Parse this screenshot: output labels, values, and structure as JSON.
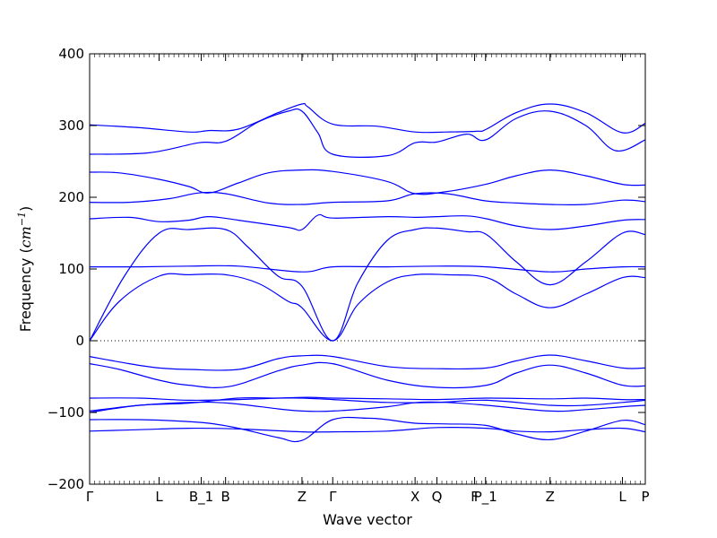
{
  "chart_data": {
    "type": "line",
    "xlabel": "Wave vector",
    "ylabel": "Frequency ($cm^{-1}$)",
    "ylabel_text": "Frequency (",
    "ylabel_unit_base": "cm",
    "ylabel_unit_sup": "−1",
    "ylabel_close": ")",
    "ylim": [
      -200,
      400
    ],
    "xlim": [
      0,
      5.6
    ],
    "y_ticks": [
      400,
      300,
      200,
      100,
      0,
      -100,
      -200
    ],
    "y_tick_labels": [
      "400",
      "300",
      "200",
      "100",
      "0",
      "−100",
      "−200"
    ],
    "high_symmetry_points": [
      {
        "x": 0.0,
        "label": "Γ"
      },
      {
        "x": 0.7,
        "label": "L"
      },
      {
        "x": 1.125,
        "label": "B_1"
      },
      {
        "x": 1.37,
        "label": "B"
      },
      {
        "x": 2.14,
        "label": "Z"
      },
      {
        "x": 2.45,
        "label": "Γ"
      },
      {
        "x": 3.28,
        "label": "X"
      },
      {
        "x": 3.5,
        "label": "Q"
      },
      {
        "x": 3.88,
        "label": "F"
      },
      {
        "x": 3.99,
        "label": "P_1"
      },
      {
        "x": 4.64,
        "label": "Z"
      },
      {
        "x": 5.37,
        "label": "L"
      },
      {
        "x": 5.6,
        "label": "P"
      }
    ],
    "zero_line": true,
    "line_color": "#0000ff",
    "series": [
      {
        "x": [
          0,
          0.5,
          1.0,
          1.2,
          1.5,
          1.9,
          2.14,
          2.2,
          2.45,
          2.9,
          3.28,
          3.6,
          3.9,
          4.0,
          4.3,
          4.64,
          5.0,
          5.37,
          5.6
        ],
        "y": [
          301,
          297,
          291,
          293,
          295,
          318,
          330,
          326,
          302,
          299,
          291,
          291,
          292,
          295,
          318,
          330,
          318,
          290,
          303
        ]
      },
      {
        "x": [
          0,
          0.6,
          1.1,
          1.37,
          1.7,
          2.0,
          2.14,
          2.3,
          2.45,
          3.0,
          3.28,
          3.5,
          3.8,
          3.99,
          4.3,
          4.64,
          5.0,
          5.3,
          5.6
        ],
        "y": [
          260,
          262,
          276,
          278,
          305,
          320,
          320,
          290,
          260,
          258,
          276,
          277,
          288,
          280,
          310,
          320,
          300,
          265,
          280
        ]
      },
      {
        "x": [
          0,
          0.3,
          0.7,
          1.0,
          1.2,
          1.5,
          1.8,
          2.14,
          2.45,
          3.0,
          3.28,
          3.6,
          3.99,
          4.3,
          4.64,
          5.0,
          5.37,
          5.6
        ],
        "y": [
          235,
          234,
          225,
          215,
          206,
          220,
          234,
          238,
          236,
          222,
          205,
          208,
          218,
          230,
          238,
          230,
          218,
          217
        ]
      },
      {
        "x": [
          0,
          0.4,
          0.8,
          1.1,
          1.37,
          1.8,
          2.14,
          2.45,
          3.0,
          3.28,
          3.6,
          3.99,
          4.3,
          4.64,
          5.0,
          5.37,
          5.6
        ],
        "y": [
          193,
          193,
          198,
          206,
          205,
          192,
          190,
          193,
          195,
          205,
          205,
          195,
          192,
          190,
          190,
          196,
          194
        ]
      },
      {
        "x": [
          0,
          0.4,
          0.7,
          1.0,
          1.2,
          1.5,
          2.0,
          2.14,
          2.3,
          2.45,
          3.0,
          3.3,
          3.5,
          3.8,
          4.0,
          4.3,
          4.64,
          5.0,
          5.37,
          5.6
        ],
        "y": [
          170,
          172,
          166,
          168,
          173,
          168,
          158,
          155,
          175,
          171,
          173,
          172,
          173,
          174,
          170,
          160,
          155,
          160,
          168,
          169
        ]
      },
      {
        "x": [
          0,
          0.35,
          0.7,
          1.0,
          1.37,
          1.6,
          1.9,
          2.14,
          2.45,
          2.7,
          3.0,
          3.28,
          3.5,
          3.8,
          4.0,
          4.3,
          4.64,
          5.0,
          5.37,
          5.6
        ],
        "y": [
          0,
          90,
          150,
          155,
          155,
          130,
          90,
          76,
          0,
          80,
          140,
          155,
          157,
          152,
          148,
          110,
          78,
          110,
          150,
          148
        ]
      },
      {
        "x": [
          0,
          0.5,
          1.0,
          1.5,
          2.14,
          2.45,
          3.0,
          3.5,
          4.0,
          4.64,
          5.0,
          5.37,
          5.6
        ],
        "y": [
          103,
          103,
          104,
          104,
          96,
          103,
          103,
          104,
          103,
          96,
          100,
          103,
          103
        ]
      },
      {
        "x": [
          0,
          0.3,
          0.7,
          1.0,
          1.37,
          1.7,
          2.0,
          2.14,
          2.45,
          2.7,
          3.0,
          3.28,
          3.6,
          4.0,
          4.3,
          4.64,
          5.0,
          5.37,
          5.6
        ],
        "y": [
          0,
          55,
          90,
          92,
          92,
          80,
          55,
          46,
          0,
          50,
          82,
          92,
          92,
          88,
          65,
          46,
          65,
          88,
          88
        ]
      },
      {
        "x": [
          0,
          0.4,
          0.7,
          1.0,
          1.5,
          1.9,
          2.14,
          2.45,
          3.0,
          3.5,
          4.0,
          4.3,
          4.64,
          5.0,
          5.37,
          5.6
        ],
        "y": [
          -22,
          -32,
          -38,
          -40,
          -40,
          -25,
          -21,
          -22,
          -36,
          -39,
          -38,
          -28,
          -20,
          -28,
          -38,
          -38
        ]
      },
      {
        "x": [
          0,
          0.3,
          0.7,
          1.0,
          1.4,
          1.9,
          2.14,
          2.45,
          3.0,
          3.5,
          4.0,
          4.3,
          4.64,
          5.0,
          5.37,
          5.6
        ],
        "y": [
          -32,
          -40,
          -55,
          -62,
          -64,
          -42,
          -34,
          -32,
          -55,
          -65,
          -62,
          -45,
          -34,
          -45,
          -62,
          -63
        ]
      },
      {
        "x": [
          0,
          0.5,
          1.0,
          1.5,
          2.14,
          2.45,
          3.0,
          3.5,
          4.0,
          4.64,
          5.0,
          5.37,
          5.6
        ],
        "y": [
          -80,
          -80,
          -83,
          -82,
          -79,
          -80,
          -81,
          -82,
          -80,
          -81,
          -80,
          -82,
          -82
        ]
      },
      {
        "x": [
          0,
          0.5,
          1.0,
          1.4,
          1.9,
          2.14,
          2.45,
          3.0,
          3.3,
          3.6,
          4.0,
          4.64,
          5.0,
          5.37,
          5.6
        ],
        "y": [
          -98,
          -90,
          -86,
          -87,
          -95,
          -98,
          -98,
          -92,
          -86,
          -86,
          -90,
          -98,
          -96,
          -92,
          -90
        ]
      },
      {
        "x": [
          0,
          0.5,
          1.0,
          1.5,
          1.9,
          2.14,
          2.45,
          3.0,
          3.5,
          4.0,
          4.64,
          5.0,
          5.37,
          5.6
        ],
        "y": [
          -100,
          -90,
          -87,
          -80,
          -80,
          -80,
          -82,
          -86,
          -86,
          -83,
          -90,
          -90,
          -86,
          -83
        ]
      },
      {
        "x": [
          0,
          0.5,
          0.9,
          1.2,
          1.5,
          1.9,
          2.14,
          2.45,
          2.8,
          3.0,
          3.28,
          3.6,
          3.99,
          4.3,
          4.64,
          5.0,
          5.37,
          5.6
        ],
        "y": [
          -110,
          -110,
          -112,
          -115,
          -122,
          -135,
          -139,
          -110,
          -108,
          -110,
          -115,
          -116,
          -118,
          -130,
          -138,
          -126,
          -111,
          -117
        ]
      },
      {
        "x": [
          0,
          0.5,
          1.0,
          1.5,
          2.14,
          2.45,
          3.0,
          3.5,
          3.99,
          4.3,
          4.64,
          5.0,
          5.37,
          5.6
        ],
        "y": [
          -126,
          -124,
          -122,
          -123,
          -127,
          -127,
          -126,
          -121,
          -122,
          -126,
          -127,
          -124,
          -122,
          -127
        ]
      }
    ]
  }
}
